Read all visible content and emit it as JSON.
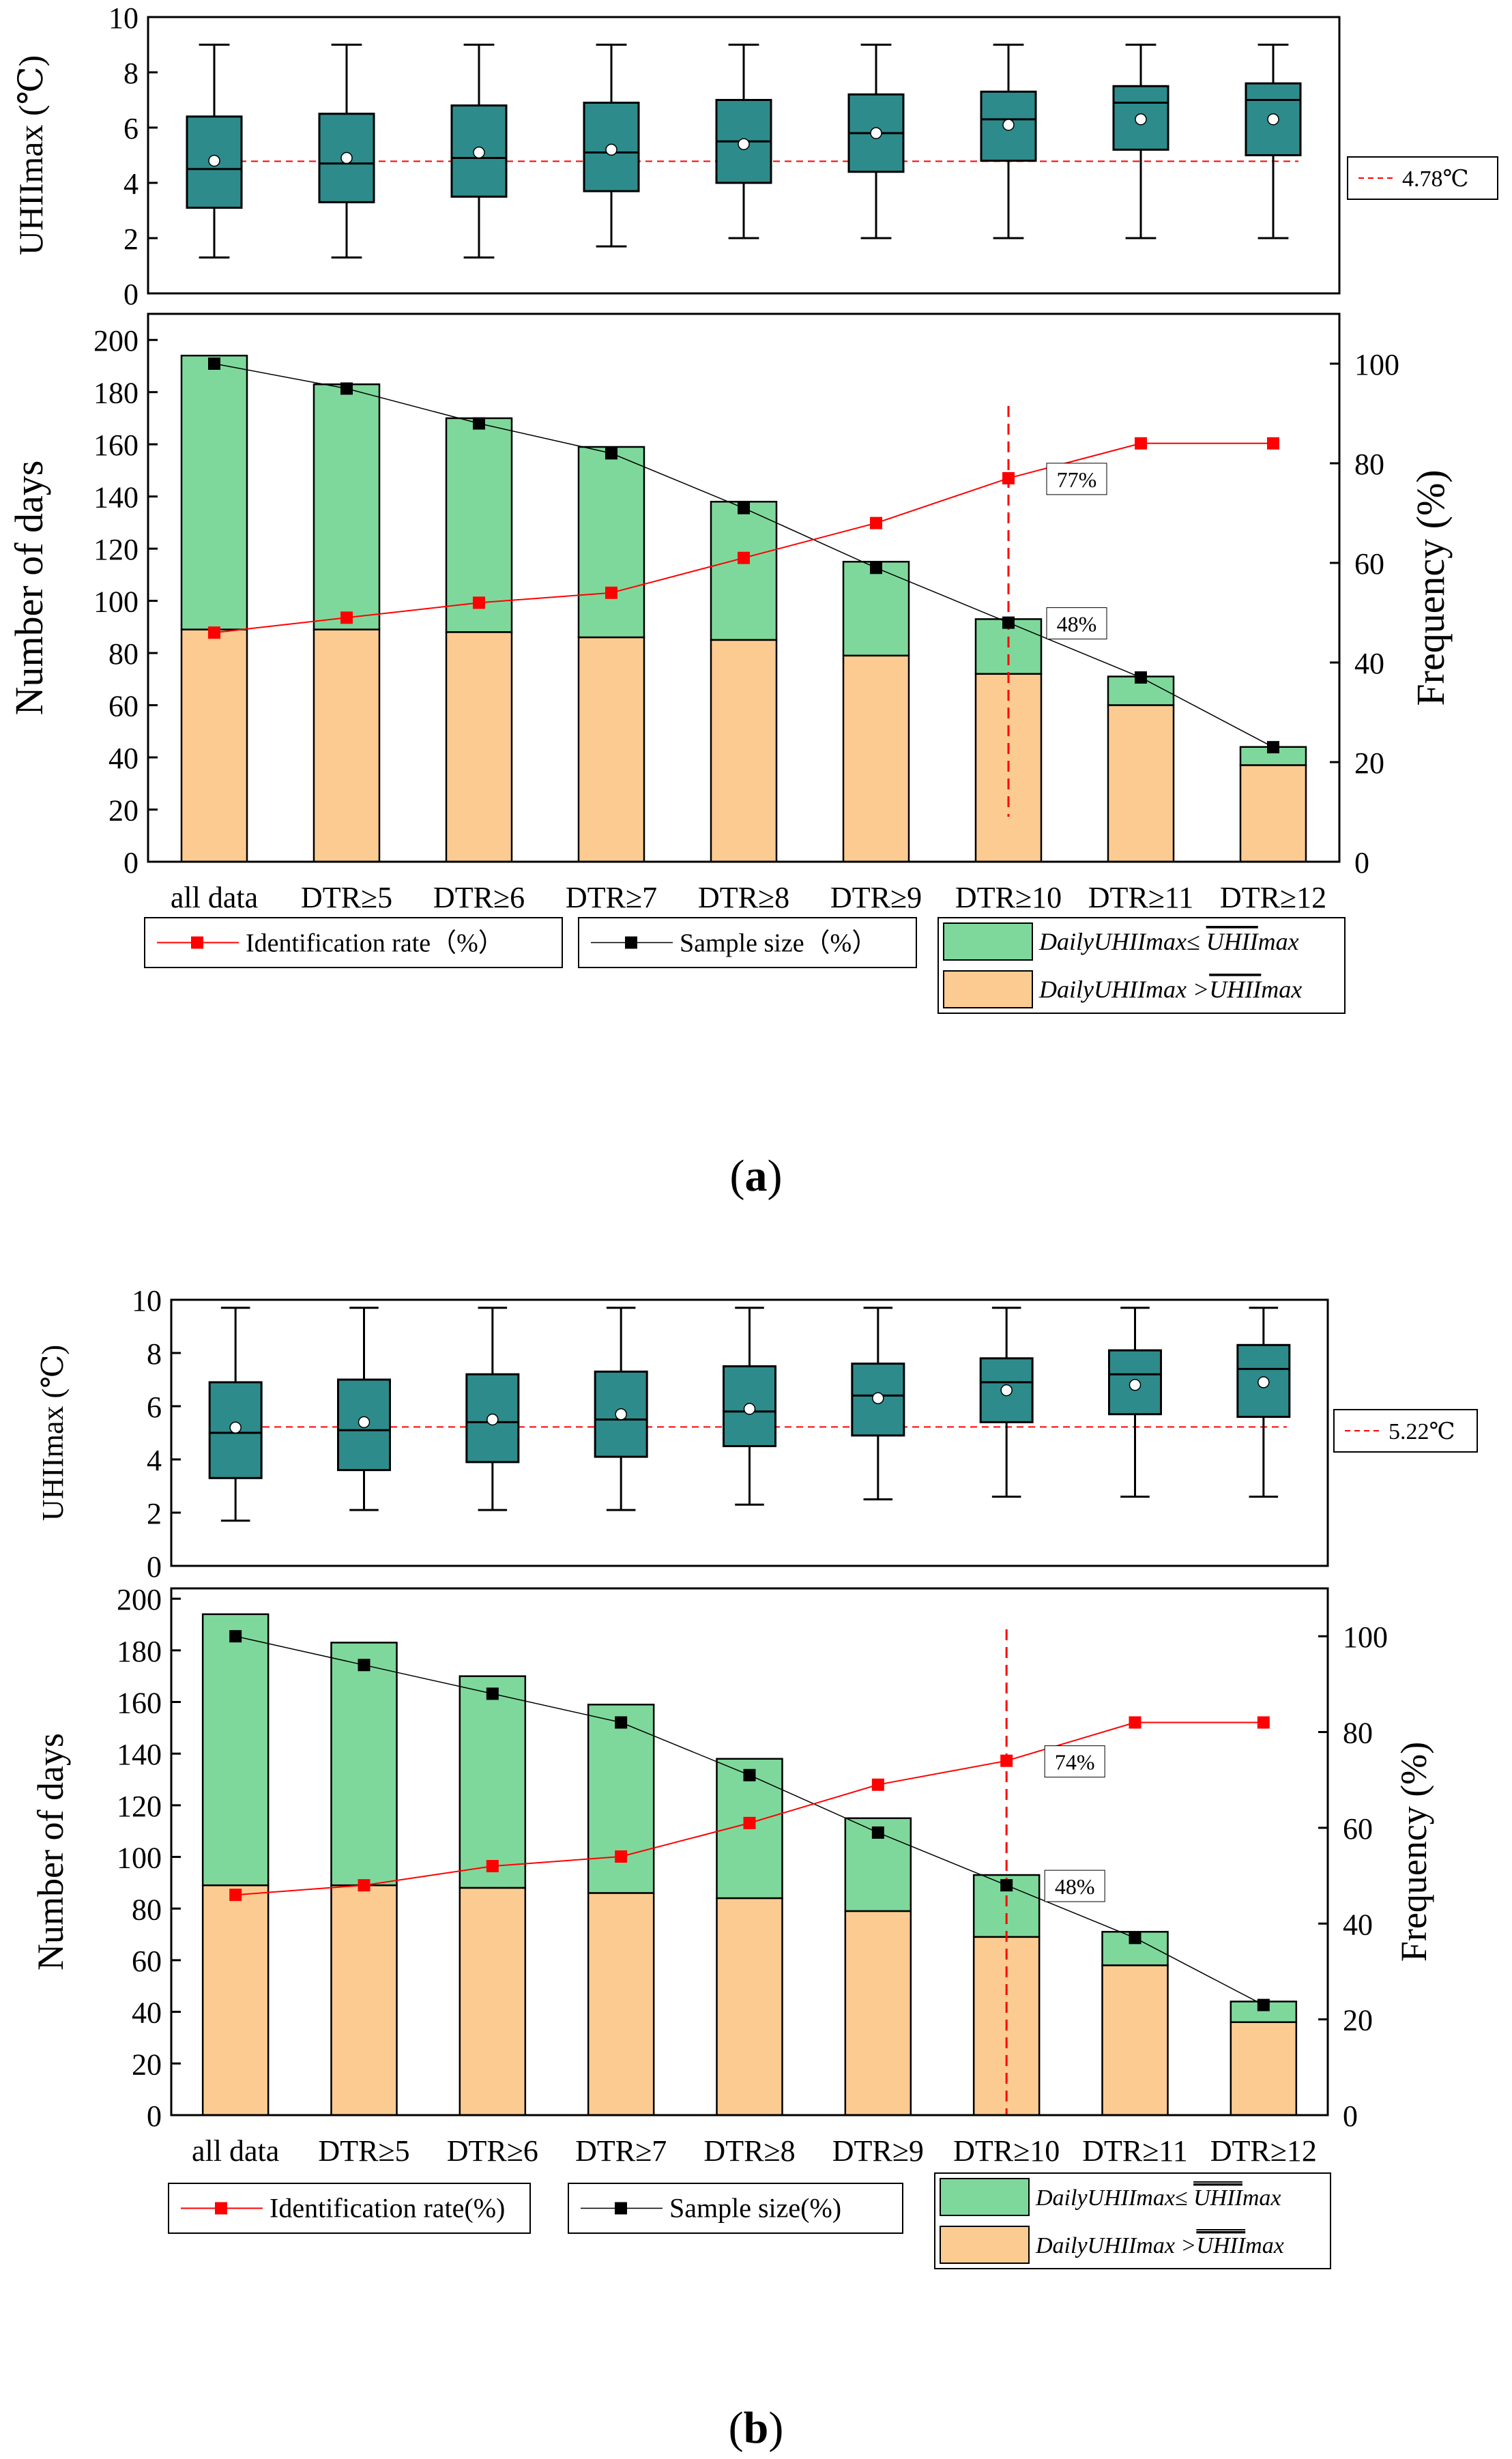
{
  "colors": {
    "box_fill": "#2e8b8b",
    "green": "#7fd89b",
    "orange": "#fccb92",
    "red": "#ff0000",
    "black": "#000000"
  },
  "captions": {
    "a": {
      "open": "(",
      "letter": "a",
      "close": ")"
    },
    "b": {
      "open": "(",
      "letter": "b",
      "close": ")"
    }
  },
  "chart_data": [
    {
      "panel": "a",
      "type": "box",
      "ylabel": "UHIImax (℃)",
      "ylim": [
        0,
        10
      ],
      "yticks": [
        "0",
        "2",
        "4",
        "6",
        "8",
        "10"
      ],
      "categories": [
        "all data",
        "DTR≥5",
        "DTR≥6",
        "DTR≥7",
        "DTR≥8",
        "DTR≥9",
        "DTR≥10",
        "DTR≥11",
        "DTR≥12"
      ],
      "boxes": [
        {
          "min": 1.3,
          "q1": 3.1,
          "median": 4.5,
          "mean": 4.8,
          "q3": 6.4,
          "max": 9.0
        },
        {
          "min": 1.3,
          "q1": 3.3,
          "median": 4.7,
          "mean": 4.9,
          "q3": 6.5,
          "max": 9.0
        },
        {
          "min": 1.3,
          "q1": 3.5,
          "median": 4.9,
          "mean": 5.1,
          "q3": 6.8,
          "max": 9.0
        },
        {
          "min": 1.7,
          "q1": 3.7,
          "median": 5.1,
          "mean": 5.2,
          "q3": 6.9,
          "max": 9.0
        },
        {
          "min": 2.0,
          "q1": 4.0,
          "median": 5.5,
          "mean": 5.4,
          "q3": 7.0,
          "max": 9.0
        },
        {
          "min": 2.0,
          "q1": 4.4,
          "median": 5.8,
          "mean": 5.8,
          "q3": 7.2,
          "max": 9.0
        },
        {
          "min": 2.0,
          "q1": 4.8,
          "median": 6.3,
          "mean": 6.1,
          "q3": 7.3,
          "max": 9.0
        },
        {
          "min": 2.0,
          "q1": 5.2,
          "median": 6.9,
          "mean": 6.3,
          "q3": 7.5,
          "max": 9.0
        },
        {
          "min": 2.0,
          "q1": 5.0,
          "median": 7.0,
          "mean": 6.3,
          "q3": 7.6,
          "max": 9.0
        }
      ],
      "reference_line": {
        "value": 4.78,
        "label": "4.78℃"
      }
    },
    {
      "panel": "a",
      "type": "bar",
      "ylabel": "Number of days",
      "y2label": "Frequency (%)",
      "ylim": [
        0,
        210
      ],
      "yticks": [
        "0",
        "20",
        "40",
        "60",
        "80",
        "100",
        "120",
        "140",
        "160",
        "180",
        "200"
      ],
      "y2lim": [
        0,
        110
      ],
      "y2ticks": [
        "0",
        "20",
        "40",
        "60",
        "80",
        "100"
      ],
      "categories": [
        "all data",
        "DTR≥5",
        "DTR≥6",
        "DTR≥7",
        "DTR≥8",
        "DTR≥9",
        "DTR≥10",
        "DTR≥11",
        "DTR≥12"
      ],
      "series": [
        {
          "name": "DailyUHIImax>UHIImax mean",
          "values": [
            89,
            89,
            88,
            86,
            85,
            79,
            72,
            60,
            37
          ]
        },
        {
          "name": "DailyUHIImax≤UHIImax mean",
          "values": [
            105,
            94,
            82,
            73,
            53,
            36,
            21,
            11,
            7
          ]
        }
      ],
      "lines": [
        {
          "name": "Identification rate（%）",
          "values": [
            46,
            49,
            52,
            54,
            61,
            68,
            77,
            84,
            84
          ]
        },
        {
          "name": "Sample size（%）",
          "values": [
            100,
            95,
            88,
            82,
            71,
            59,
            48,
            37,
            23
          ]
        }
      ],
      "vline_category": "DTR≥10",
      "annotations": [
        {
          "text": "77%",
          "category": "DTR≥10",
          "value": 77
        },
        {
          "text": "48%",
          "category": "DTR≥10",
          "value": 48
        }
      ],
      "legend": {
        "id_rate": "Identification rate（%）",
        "sample": "Sample size（%）",
        "green_prefix": "DailyUHIImax≤ ",
        "orange_prefix": "DailyUHIImax >",
        "bar_name": "UHII",
        "bar_suffix": "max"
      }
    },
    {
      "panel": "b",
      "type": "box",
      "ylabel": "UHIImax (℃)",
      "ylim": [
        0,
        10
      ],
      "yticks": [
        "0",
        "2",
        "4",
        "6",
        "8",
        "10"
      ],
      "categories": [
        "all data",
        "DTR≥5",
        "DTR≥6",
        "DTR≥7",
        "DTR≥8",
        "DTR≥9",
        "DTR≥10",
        "DTR≥11",
        "DTR≥12"
      ],
      "boxes": [
        {
          "min": 1.7,
          "q1": 3.3,
          "median": 5.0,
          "mean": 5.2,
          "q3": 6.9,
          "max": 9.7
        },
        {
          "min": 2.1,
          "q1": 3.6,
          "median": 5.1,
          "mean": 5.4,
          "q3": 7.0,
          "max": 9.7
        },
        {
          "min": 2.1,
          "q1": 3.9,
          "median": 5.4,
          "mean": 5.5,
          "q3": 7.2,
          "max": 9.7
        },
        {
          "min": 2.1,
          "q1": 4.1,
          "median": 5.5,
          "mean": 5.7,
          "q3": 7.3,
          "max": 9.7
        },
        {
          "min": 2.3,
          "q1": 4.5,
          "median": 5.8,
          "mean": 5.9,
          "q3": 7.5,
          "max": 9.7
        },
        {
          "min": 2.5,
          "q1": 4.9,
          "median": 6.4,
          "mean": 6.3,
          "q3": 7.6,
          "max": 9.7
        },
        {
          "min": 2.6,
          "q1": 5.4,
          "median": 6.9,
          "mean": 6.6,
          "q3": 7.8,
          "max": 9.7
        },
        {
          "min": 2.6,
          "q1": 5.7,
          "median": 7.2,
          "mean": 6.8,
          "q3": 8.1,
          "max": 9.7
        },
        {
          "min": 2.6,
          "q1": 5.6,
          "median": 7.4,
          "mean": 6.9,
          "q3": 8.3,
          "max": 9.7
        }
      ],
      "reference_line": {
        "value": 5.22,
        "label": "5.22℃"
      }
    },
    {
      "panel": "b",
      "type": "bar",
      "ylabel": "Number of days",
      "y2label": "Frequency (%)",
      "ylim": [
        0,
        204
      ],
      "yticks": [
        "0",
        "20",
        "40",
        "60",
        "80",
        "100",
        "120",
        "140",
        "160",
        "180",
        "200"
      ],
      "y2lim": [
        0,
        110
      ],
      "y2ticks": [
        "0",
        "20",
        "40",
        "60",
        "80",
        "100"
      ],
      "categories": [
        "all data",
        "DTR≥5",
        "DTR≥6",
        "DTR≥7",
        "DTR≥8",
        "DTR≥9",
        "DTR≥10",
        "DTR≥11",
        "DTR≥12"
      ],
      "series": [
        {
          "name": "DailyUHIImax>UHIImax mean",
          "values": [
            89,
            89,
            88,
            86,
            84,
            79,
            69,
            58,
            36
          ]
        },
        {
          "name": "DailyUHIImax≤UHIImax mean",
          "values": [
            105,
            94,
            82,
            73,
            54,
            36,
            24,
            13,
            8
          ]
        }
      ],
      "lines": [
        {
          "name": "Identification rate(%)",
          "values": [
            46,
            48,
            52,
            54,
            61,
            69,
            74,
            82,
            82
          ]
        },
        {
          "name": "Sample size(%)",
          "values": [
            100,
            94,
            88,
            82,
            71,
            59,
            48,
            37,
            23
          ]
        }
      ],
      "vline_category": "DTR≥10",
      "annotations": [
        {
          "text": "74%",
          "category": "DTR≥10",
          "value": 74
        },
        {
          "text": "48%",
          "category": "DTR≥10",
          "value": 48
        }
      ],
      "legend": {
        "id_rate": "Identification rate(%)",
        "sample": "Sample size(%)",
        "green_prefix": "DailyUHIImax≤ ",
        "orange_prefix": "DailyUHIImax >",
        "bar_name": "UHII",
        "bar_suffix": "max"
      }
    }
  ]
}
